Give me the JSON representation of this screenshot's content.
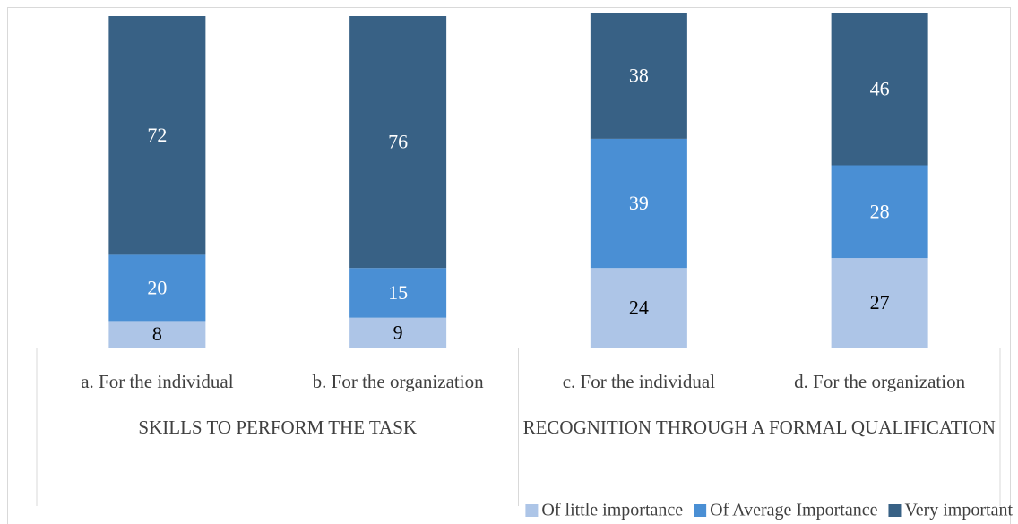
{
  "chart_data": {
    "type": "stacked_bar",
    "groups": [
      {
        "name": "SKILLS TO PERFORM THE TASK",
        "categories": [
          "a. For the individual",
          "b. For the organization"
        ]
      },
      {
        "name": "RECOGNITION THROUGH A FORMAL QUALIFICATION",
        "categories": [
          "c. For the individual",
          "d. For the organization"
        ]
      }
    ],
    "series": [
      {
        "name": "Of little importance",
        "color": "#adc5e7",
        "label_color": "#000000",
        "values": [
          8,
          9,
          24,
          27
        ]
      },
      {
        "name": "Of Average Importance",
        "color": "#4a8fd4",
        "label_color": "#ffffff",
        "values": [
          20,
          15,
          39,
          28
        ]
      },
      {
        "name": "Very important",
        "color": "#386185",
        "label_color": "#ffffff",
        "values": [
          72,
          76,
          38,
          46
        ]
      }
    ],
    "ylim": [
      0,
      100
    ],
    "legend": "bottom-right"
  }
}
